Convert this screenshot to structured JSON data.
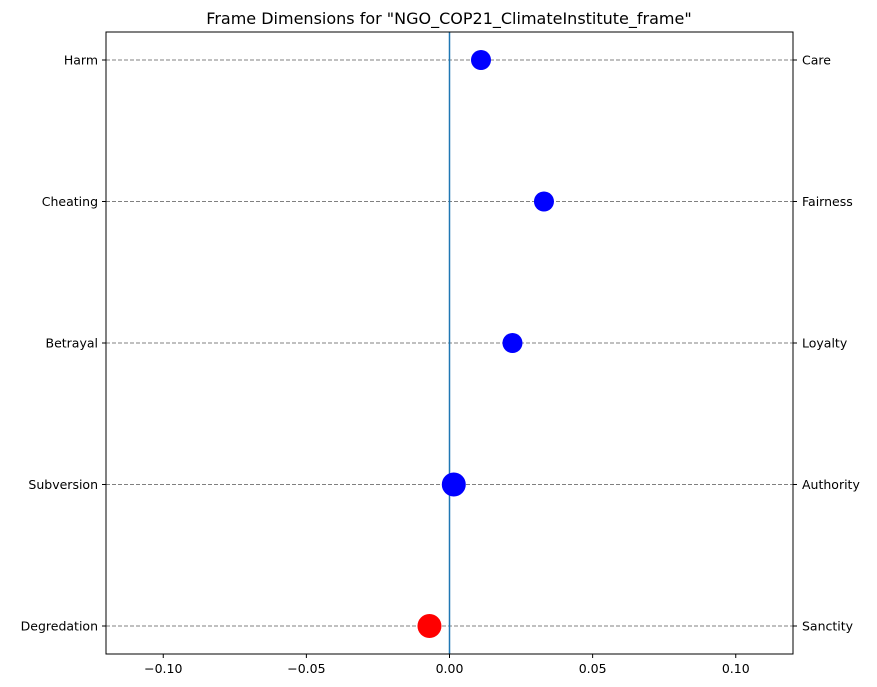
{
  "chart_data": {
    "type": "scatter",
    "title": "Frame Dimensions for \"NGO_COP21_ClimateInstitute_frame\"",
    "xlim": [
      -0.12,
      0.12
    ],
    "xticks": [
      -0.1,
      -0.05,
      0.0,
      0.05,
      0.1
    ],
    "xtick_labels": [
      "−0.10",
      "−0.05",
      "0.00",
      "0.05",
      "0.10"
    ],
    "left_labels": [
      "Harm",
      "Cheating",
      "Betrayal",
      "Subversion",
      "Degredation"
    ],
    "right_labels": [
      "Care",
      "Fairness",
      "Loyalty",
      "Authority",
      "Sanctity"
    ],
    "reference_line_x": 0.0,
    "grid": "horizontal dashed",
    "points": [
      {
        "x": 0.011,
        "color": "#0000ff",
        "size": "medium"
      },
      {
        "x": 0.033,
        "color": "#0000ff",
        "size": "medium"
      },
      {
        "x": 0.022,
        "color": "#0000ff",
        "size": "medium"
      },
      {
        "x": 0.0015,
        "color": "#0000ff",
        "size": "large"
      },
      {
        "x": -0.007,
        "color": "#ff0000",
        "size": "large"
      }
    ],
    "colors": {
      "positive": "#0000ff",
      "negative": "#ff0000",
      "reference": "#1f77b4",
      "grid": "#808080"
    }
  }
}
